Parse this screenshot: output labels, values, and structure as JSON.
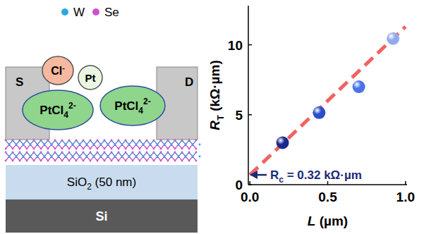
{
  "diagram": {
    "legend": [
      {
        "label": "W",
        "color": "#2aa8e0"
      },
      {
        "label": "Se",
        "color": "#d04fd0"
      }
    ],
    "source": "S",
    "drain": "D",
    "ions": [
      {
        "main": "Cl",
        "sup": "-"
      },
      {
        "main": "Pt"
      },
      {
        "main": "PtCl",
        "sub": "4",
        "sup": "2-"
      },
      {
        "main": "PtCl",
        "sub": "4",
        "sup": "2-"
      }
    ],
    "oxide": {
      "main": "SiO",
      "sub": "2",
      "rest": " (50 nm)"
    },
    "substrate": "Si"
  },
  "chart_data": {
    "type": "scatter",
    "x_label": {
      "main": "L",
      "rest": " (µm)"
    },
    "y_label": {
      "main": "R",
      "sub": "T",
      "rest": " (kΩ·µm)"
    },
    "annotation": {
      "main": "R",
      "sub": "c",
      "rest": " = 0.32 kΩ·µm"
    },
    "series": [
      {
        "type": "scatter",
        "marker": "sphere",
        "x": [
          0.21,
          0.445,
          0.7,
          0.92
        ],
        "values": [
          3.0,
          5.15,
          7.0,
          10.45
        ],
        "colors": [
          "#1a2a8a",
          "#2a4fc8",
          "#4a73e8",
          "#93a9ee"
        ]
      },
      {
        "type": "line",
        "line_style": "dashed",
        "color": "#f26262",
        "x": [
          0,
          1
        ],
        "values": [
          0.7,
          11.3
        ]
      }
    ],
    "xlim": [
      -0.01,
      1.01
    ],
    "xticks": [
      {
        "value": 0,
        "label": "0.0"
      },
      {
        "value": 0.5,
        "label": "0.5"
      },
      {
        "value": 1,
        "label": "1.0"
      }
    ],
    "ylim": [
      0,
      12.8
    ],
    "yticks": [
      0,
      5,
      10
    ]
  }
}
